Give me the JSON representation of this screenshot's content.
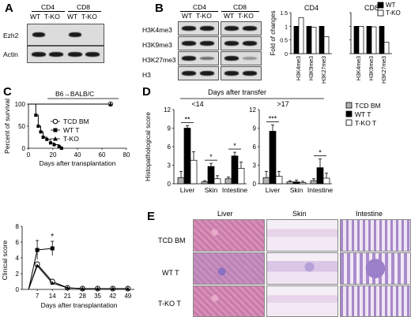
{
  "panelA": {
    "letter": "A",
    "groups": [
      "CD4",
      "CD8"
    ],
    "lanes": [
      "WT",
      "T-KO",
      "WT",
      "T-KO"
    ],
    "rows": [
      "Ezh2",
      "Actin"
    ]
  },
  "panelB": {
    "letter": "B",
    "groups": [
      "CD4",
      "CD8"
    ],
    "lanes": [
      "WT",
      "T-KO",
      "WT",
      "T-KO"
    ],
    "rows": [
      "H3K4me3",
      "H3K9me3",
      "H3K27me3",
      "H3"
    ]
  },
  "panelC": {
    "letter": "C"
  },
  "panelD": {
    "letter": "D"
  },
  "panelE": {
    "letter": "E",
    "columns": [
      "Liver",
      "Skin",
      "Intestine"
    ],
    "rows": [
      "TCD BM",
      "WT T",
      "T-KO T"
    ]
  },
  "chart_data": [
    {
      "id": "B-fold-change",
      "type": "bar",
      "ylabel": "Fold of changes",
      "ylim": [
        0,
        1.5
      ],
      "yticks": [
        "0",
        "0.5",
        "1",
        "1.5"
      ],
      "legend": [
        "WT",
        "T-KO"
      ],
      "legend_colors": [
        "#000000",
        "#ffffff"
      ],
      "panels": [
        {
          "title": "CD4",
          "categories": [
            "H3K4me3",
            "H3K9me3",
            "H3K27me3"
          ],
          "series": [
            {
              "name": "WT",
              "values": [
                1.0,
                1.0,
                1.0
              ]
            },
            {
              "name": "T-KO",
              "values": [
                1.32,
                0.97,
                0.62
              ]
            }
          ]
        },
        {
          "title": "CD8",
          "categories": [
            "H3K4me3",
            "H3K9me3",
            "H3K27me3"
          ],
          "series": [
            {
              "name": "WT",
              "values": [
                1.0,
                1.0,
                1.0
              ]
            },
            {
              "name": "T-KO",
              "values": [
                1.0,
                0.98,
                0.42
              ]
            }
          ]
        }
      ]
    },
    {
      "id": "C-survival",
      "type": "line",
      "title": "B6→BALB/C",
      "xlabel": "Days after transplantation",
      "ylabel": "Percent of survival",
      "xlim": [
        0,
        80
      ],
      "ylim": [
        0,
        100
      ],
      "xticks": [
        "0",
        "20",
        "40",
        "60",
        "80"
      ],
      "yticks": [
        "0",
        "50",
        "100"
      ],
      "legend": [
        "TCD BM",
        "WT T",
        "T-KO"
      ],
      "series": [
        {
          "name": "TCD BM",
          "x": [
            0,
            67
          ],
          "y": [
            100,
            100
          ]
        },
        {
          "name": "WT T",
          "x": [
            0,
            6,
            8,
            10,
            12,
            15,
            18,
            21,
            25,
            27
          ],
          "y": [
            100,
            75,
            50,
            37,
            25,
            20,
            12,
            8,
            4,
            0
          ]
        },
        {
          "name": "T-KO",
          "x": [
            0,
            67
          ],
          "y": [
            100,
            100
          ]
        }
      ]
    },
    {
      "id": "C-clinical",
      "type": "line",
      "xlabel": "Days after transplantation",
      "ylabel": "Clinical score",
      "ylim": [
        0,
        8
      ],
      "categories": [
        "0",
        "7",
        "14",
        "21",
        "28",
        "35",
        "42",
        "49"
      ],
      "yticks": [
        "0",
        "2",
        "4",
        "6",
        "8"
      ],
      "annotation": "*",
      "series": [
        {
          "name": "TCD BM",
          "x": [
            3,
            7,
            14,
            21,
            28,
            35,
            42,
            49
          ],
          "y": [
            0,
            3.2,
            1.0,
            0.2,
            0.1,
            0.1,
            0.1,
            0.1
          ]
        },
        {
          "name": "WT T",
          "x": [
            3,
            7,
            14
          ],
          "y": [
            0,
            5.0,
            5.2
          ]
        },
        {
          "name": "T-KO",
          "x": [
            3,
            7,
            14,
            21,
            28,
            35,
            42,
            49
          ],
          "y": [
            0,
            3.0,
            0.8,
            0.2,
            0.1,
            0.1,
            0.1,
            0.1
          ]
        }
      ]
    },
    {
      "id": "D-histopathology",
      "type": "bar",
      "ylabel": "Histopathological score",
      "title": "Days after transfer",
      "ylim": [
        0,
        12
      ],
      "yticks": [
        "0",
        "3",
        "6",
        "9",
        "12"
      ],
      "legend": [
        "TCD BM",
        "WT T",
        "T-KO T"
      ],
      "legend_colors": [
        "#b0b0b0",
        "#000000",
        "#ffffff"
      ],
      "panels": [
        {
          "title": "<14",
          "categories": [
            "Liver",
            "Skin",
            "Intestine"
          ],
          "significance": [
            "**",
            "*",
            "*"
          ],
          "series": [
            {
              "name": "TCD BM",
              "values": [
                1.0,
                0.3,
                0.8
              ],
              "errors": [
                1.0,
                0.2,
                0.3
              ]
            },
            {
              "name": "WT T",
              "values": [
                9.0,
                2.8,
                4.5
              ],
              "errors": [
                0.4,
                0.5,
                0.6
              ]
            },
            {
              "name": "T-KO T",
              "values": [
                3.8,
                0.8,
                2.5
              ],
              "errors": [
                1.4,
                0.5,
                1.0
              ]
            }
          ]
        },
        {
          "title": ">17",
          "categories": [
            "Liver",
            "Skin",
            "Intestine"
          ],
          "significance": [
            "***",
            "",
            "*"
          ],
          "series": [
            {
              "name": "TCD BM",
              "values": [
                1.0,
                0.3,
                0.5
              ],
              "errors": [
                1.0,
                0.2,
                0.3
              ]
            },
            {
              "name": "WT T",
              "values": [
                8.5,
                0.3,
                2.6
              ],
              "errors": [
                1.0,
                0.3,
                1.4
              ]
            },
            {
              "name": "T-KO T",
              "values": [
                1.2,
                0.2,
                0.9
              ],
              "errors": [
                0.8,
                0.2,
                0.8
              ]
            }
          ]
        }
      ]
    }
  ]
}
